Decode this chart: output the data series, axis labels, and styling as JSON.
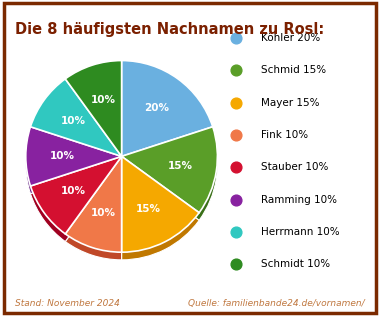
{
  "title": "Die 8 häufigsten Nachnamen zu Rosl:",
  "labels": [
    "Köhler",
    "Schmid",
    "Mayer",
    "Fink",
    "Stauber",
    "Ramming",
    "Herrmann",
    "Schmidt"
  ],
  "values": [
    20,
    15,
    15,
    10,
    10,
    10,
    10,
    10
  ],
  "colors": [
    "#6ab0e0",
    "#5a9e28",
    "#f5a800",
    "#f07848",
    "#d41030",
    "#8822a0",
    "#30c8c0",
    "#2e8b20"
  ],
  "shadow_colors": [
    "#4878a0",
    "#3a7018",
    "#c07800",
    "#c04828",
    "#a00020",
    "#601880",
    "#109898",
    "#186018"
  ],
  "pct_labels": [
    "20%",
    "15%",
    "15%",
    "10%",
    "10%",
    "10%",
    "10%",
    "10%"
  ],
  "legend_labels": [
    "Köhler 20%",
    "Schmid 15%",
    "Mayer 15%",
    "Fink 10%",
    "Stauber 10%",
    "Ramming 10%",
    "Herrmann 10%",
    "Schmidt 10%"
  ],
  "footer_left": "Stand: November 2024",
  "footer_right": "Quelle: familienbande24.de/vornamen/",
  "title_color": "#7b2000",
  "footer_color": "#c07840",
  "border_color": "#7b2a00",
  "background_color": "#ffffff",
  "startangle": 90
}
